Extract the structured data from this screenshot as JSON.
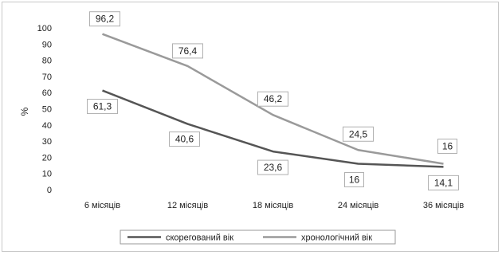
{
  "chart_data": {
    "type": "line",
    "categories": [
      "6 місяців",
      "12 місяців",
      "18 місяців",
      "24 місяців",
      "36 місяців"
    ],
    "ylabel": "%",
    "ylim": [
      0,
      100
    ],
    "yticks": [
      0,
      10,
      20,
      30,
      40,
      50,
      60,
      70,
      80,
      90,
      100
    ],
    "grid": false,
    "legend_position": "bottom",
    "series": [
      {
        "name": "скорегований вік",
        "values": [
          61.3,
          40.6,
          23.6,
          16,
          14.1
        ],
        "labels": [
          "61,3",
          "40,6",
          "23,6",
          "16",
          "14,1"
        ],
        "color": "#555555"
      },
      {
        "name": "хронологічний вік",
        "values": [
          96.2,
          76.4,
          46.2,
          24.5,
          16
        ],
        "labels": [
          "96,2",
          "76,4",
          "46,2",
          "24,5",
          "16"
        ],
        "color": "#9a9a9a"
      }
    ]
  }
}
